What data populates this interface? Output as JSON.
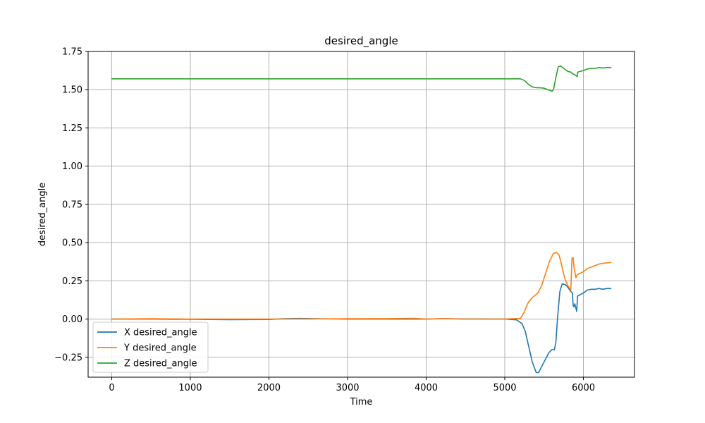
{
  "chart_data": {
    "type": "line",
    "title": "desired_angle",
    "xlabel": "Time",
    "ylabel": "desired_angle",
    "xlim": [
      -300,
      6650
    ],
    "ylim": [
      -0.38,
      1.75
    ],
    "grid": true,
    "legend_position": "lower-left",
    "x_ticks": [
      0,
      1000,
      2000,
      3000,
      4000,
      5000,
      6000
    ],
    "x_tick_labels": [
      "0",
      "1000",
      "2000",
      "3000",
      "4000",
      "5000",
      "6000"
    ],
    "y_ticks": [
      -0.25,
      0.0,
      0.25,
      0.5,
      0.75,
      1.0,
      1.25,
      1.5,
      1.75
    ],
    "y_tick_labels": [
      "−0.25",
      "0.00",
      "0.25",
      "0.50",
      "0.75",
      "1.00",
      "1.25",
      "1.50",
      "1.75"
    ],
    "series": [
      {
        "name": "X desired_angle",
        "color": "#1f77b4",
        "points": [
          [
            0,
            0.0
          ],
          [
            500,
            0.0
          ],
          [
            1000,
            -0.002
          ],
          [
            1500,
            -0.004
          ],
          [
            2000,
            -0.003
          ],
          [
            2200,
            0.002
          ],
          [
            2400,
            0.004
          ],
          [
            2600,
            0.002
          ],
          [
            3000,
            0.0
          ],
          [
            3500,
            0.0
          ],
          [
            4000,
            0.0
          ],
          [
            4200,
            0.003
          ],
          [
            4500,
            0.001
          ],
          [
            5000,
            0.0
          ],
          [
            5150,
            -0.005
          ],
          [
            5220,
            -0.03
          ],
          [
            5260,
            -0.08
          ],
          [
            5300,
            -0.17
          ],
          [
            5350,
            -0.28
          ],
          [
            5400,
            -0.35
          ],
          [
            5430,
            -0.35
          ],
          [
            5470,
            -0.31
          ],
          [
            5520,
            -0.26
          ],
          [
            5560,
            -0.22
          ],
          [
            5600,
            -0.2
          ],
          [
            5630,
            -0.2
          ],
          [
            5650,
            -0.15
          ],
          [
            5670,
            0.0
          ],
          [
            5700,
            0.18
          ],
          [
            5730,
            0.23
          ],
          [
            5770,
            0.225
          ],
          [
            5800,
            0.21
          ],
          [
            5840,
            0.18
          ],
          [
            5860,
            0.17
          ],
          [
            5870,
            0.09
          ],
          [
            5880,
            0.08
          ],
          [
            5890,
            0.1
          ],
          [
            5900,
            0.08
          ],
          [
            5915,
            0.05
          ],
          [
            5925,
            0.15
          ],
          [
            5960,
            0.16
          ],
          [
            6000,
            0.17
          ],
          [
            6050,
            0.19
          ],
          [
            6100,
            0.195
          ],
          [
            6150,
            0.195
          ],
          [
            6200,
            0.2
          ],
          [
            6250,
            0.195
          ],
          [
            6300,
            0.2
          ],
          [
            6350,
            0.2
          ]
        ]
      },
      {
        "name": "Y desired_angle",
        "color": "#ff7f0e",
        "points": [
          [
            0,
            0.0
          ],
          [
            500,
            0.002
          ],
          [
            1000,
            0.0
          ],
          [
            1500,
            0.0
          ],
          [
            2000,
            0.0
          ],
          [
            2500,
            0.001
          ],
          [
            3000,
            0.002
          ],
          [
            3500,
            0.003
          ],
          [
            3850,
            0.005
          ],
          [
            4000,
            0.0
          ],
          [
            4200,
            0.002
          ],
          [
            4500,
            0.0
          ],
          [
            5000,
            0.0
          ],
          [
            5200,
            0.005
          ],
          [
            5240,
            0.04
          ],
          [
            5300,
            0.11
          ],
          [
            5350,
            0.14
          ],
          [
            5420,
            0.17
          ],
          [
            5470,
            0.22
          ],
          [
            5520,
            0.3
          ],
          [
            5570,
            0.38
          ],
          [
            5620,
            0.43
          ],
          [
            5660,
            0.435
          ],
          [
            5690,
            0.42
          ],
          [
            5720,
            0.36
          ],
          [
            5760,
            0.27
          ],
          [
            5800,
            0.22
          ],
          [
            5840,
            0.19
          ],
          [
            5855,
            0.4
          ],
          [
            5870,
            0.4
          ],
          [
            5880,
            0.34
          ],
          [
            5890,
            0.31
          ],
          [
            5905,
            0.27
          ],
          [
            5920,
            0.29
          ],
          [
            5960,
            0.3
          ],
          [
            6000,
            0.31
          ],
          [
            6050,
            0.33
          ],
          [
            6100,
            0.34
          ],
          [
            6150,
            0.35
          ],
          [
            6200,
            0.36
          ],
          [
            6250,
            0.365
          ],
          [
            6300,
            0.368
          ],
          [
            6350,
            0.37
          ]
        ]
      },
      {
        "name": "Z desired_angle",
        "color": "#2ca02c",
        "points": [
          [
            0,
            1.571
          ],
          [
            1000,
            1.571
          ],
          [
            2000,
            1.571
          ],
          [
            3000,
            1.571
          ],
          [
            4000,
            1.571
          ],
          [
            5000,
            1.571
          ],
          [
            5200,
            1.571
          ],
          [
            5250,
            1.56
          ],
          [
            5300,
            1.535
          ],
          [
            5350,
            1.518
          ],
          [
            5400,
            1.513
          ],
          [
            5450,
            1.512
          ],
          [
            5500,
            1.51
          ],
          [
            5550,
            1.5
          ],
          [
            5600,
            1.49
          ],
          [
            5620,
            1.5
          ],
          [
            5650,
            1.58
          ],
          [
            5680,
            1.65
          ],
          [
            5710,
            1.655
          ],
          [
            5750,
            1.64
          ],
          [
            5800,
            1.62
          ],
          [
            5840,
            1.615
          ],
          [
            5860,
            1.605
          ],
          [
            5880,
            1.6
          ],
          [
            5900,
            1.595
          ],
          [
            5920,
            1.585
          ],
          [
            5930,
            1.615
          ],
          [
            5960,
            1.62
          ],
          [
            6000,
            1.625
          ],
          [
            6050,
            1.635
          ],
          [
            6100,
            1.64
          ],
          [
            6150,
            1.64
          ],
          [
            6200,
            1.645
          ],
          [
            6250,
            1.642
          ],
          [
            6300,
            1.645
          ],
          [
            6350,
            1.645
          ]
        ]
      }
    ]
  }
}
